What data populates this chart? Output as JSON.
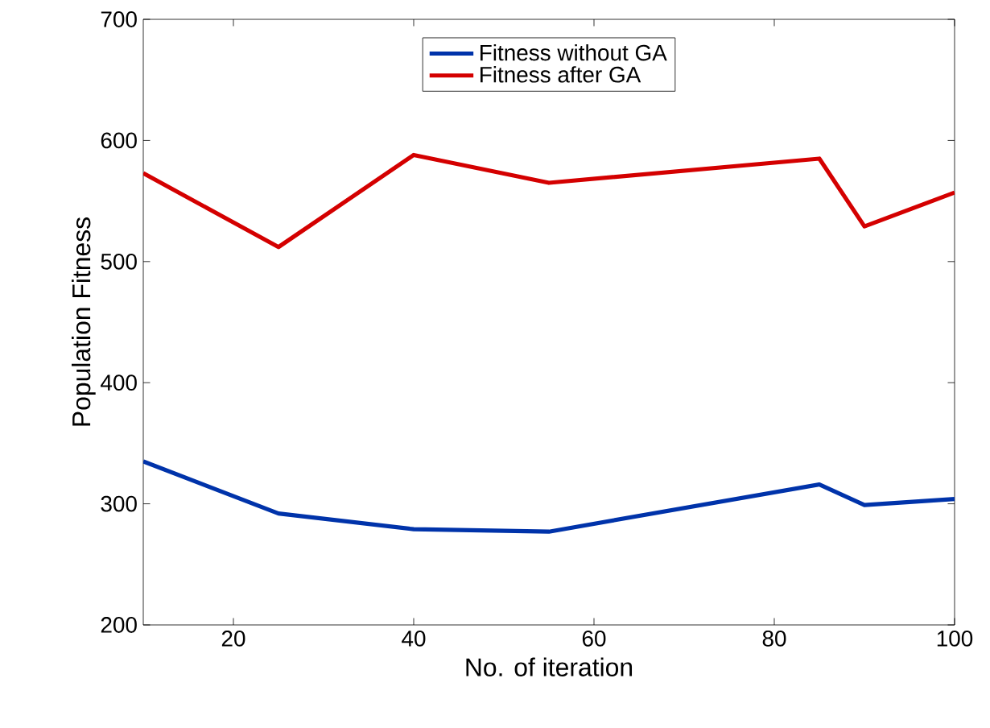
{
  "chart_data": {
    "type": "line",
    "xlabel": "No. of iteration",
    "ylabel": "Population Fitness",
    "x": [
      10,
      25,
      40,
      55,
      85,
      90,
      100
    ],
    "series": [
      {
        "name": "Fitness without GA",
        "color": "#0033aa",
        "values": [
          335,
          292,
          279,
          277,
          316,
          299,
          304
        ]
      },
      {
        "name": "Fitness after GA",
        "color": "#d40000",
        "values": [
          573,
          512,
          588,
          565,
          585,
          529,
          557
        ]
      }
    ],
    "xlim": [
      10,
      100
    ],
    "xticks": [
      20,
      40,
      60,
      80,
      100
    ],
    "ylim": [
      200,
      700
    ],
    "yticks": [
      200,
      300,
      400,
      500,
      600,
      700
    ],
    "grid": false,
    "legend": "top",
    "marker": "none",
    "line_style": "solid"
  }
}
